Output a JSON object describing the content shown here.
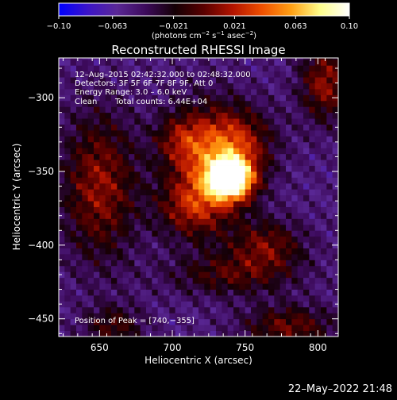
{
  "colors": {
    "background": "#000000",
    "text": "#ffffff",
    "colormap": [
      "#0000ff",
      "#3c14c8",
      "#5a2896",
      "#3c0a5a",
      "#140005",
      "#5a0000",
      "#b41400",
      "#f05000",
      "#ffa014",
      "#ffff8c",
      "#ffffff"
    ]
  },
  "colorbar": {
    "min": -0.1,
    "max": 0.1,
    "tick_labels": [
      "−0.10",
      "−0.063",
      "−0.021",
      "0.021",
      "0.063",
      "0.10"
    ],
    "unit_label_pre": "(photons cm",
    "unit_label_exp1": "−2",
    "unit_label_mid": " s",
    "unit_label_exp2": "−1",
    "unit_label_mid2": " asec",
    "unit_label_exp3": "−2",
    "unit_label_post": ")"
  },
  "chart_data": {
    "type": "heatmap",
    "title": "Reconstructed RHESSI Image",
    "xlabel": "Heliocentric X (arcsec)",
    "ylabel": "Heliocentric Y (arcsec)",
    "xlim": [
      622,
      814
    ],
    "ylim": [
      -462,
      -273
    ],
    "x_ticks": [
      650,
      700,
      750,
      800
    ],
    "x_tick_labels": [
      "650",
      "700",
      "750",
      "800"
    ],
    "y_ticks": [
      -300,
      -350,
      -400,
      -450
    ],
    "y_tick_labels": [
      "−300",
      "−350",
      "−400",
      "−450"
    ],
    "annotations": [
      "12–Aug–2015 02:42:32.000 to 02:48:32.000",
      "Detectors: 3F 5F 6F 7F 8F 9F, Att 0",
      "Energy Range: 3.0 – 6.0 keV",
      "Clean",
      "Total counts: 6.44E+04"
    ],
    "peak_label": "Position of Peak = [740,−355]",
    "peak": [
      740,
      -355
    ],
    "background_level": -0.05,
    "sources": [
      {
        "x": 740,
        "y": -355,
        "sx": 11,
        "sy": 10,
        "amp": 0.15
      },
      {
        "x": 725,
        "y": -345,
        "sx": 20,
        "sy": 28,
        "amp": 0.065
      },
      {
        "x": 745,
        "y": -330,
        "sx": 18,
        "sy": 16,
        "amp": 0.05
      },
      {
        "x": 712,
        "y": -375,
        "sx": 16,
        "sy": 14,
        "amp": 0.045
      },
      {
        "x": 705,
        "y": -328,
        "sx": 12,
        "sy": 12,
        "amp": 0.035
      },
      {
        "x": 650,
        "y": -360,
        "sx": 18,
        "sy": 35,
        "amp": 0.06
      },
      {
        "x": 765,
        "y": -400,
        "sx": 18,
        "sy": 12,
        "amp": 0.05
      },
      {
        "x": 740,
        "y": -420,
        "sx": 30,
        "sy": 10,
        "amp": 0.04
      },
      {
        "x": 780,
        "y": -455,
        "sx": 22,
        "sy": 10,
        "amp": 0.05
      },
      {
        "x": 660,
        "y": -455,
        "sx": 14,
        "sy": 10,
        "amp": 0.04
      },
      {
        "x": 805,
        "y": -290,
        "sx": 12,
        "sy": 18,
        "amp": 0.06
      }
    ]
  },
  "footer": {
    "date": "22–May–2022 21:48"
  }
}
